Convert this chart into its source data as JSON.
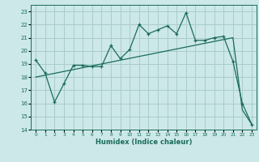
{
  "xlabel": "Humidex (Indice chaleur)",
  "background_color": "#cce8e8",
  "grid_color": "#aacccc",
  "line_color": "#1a6b5a",
  "xlim": [
    -0.5,
    23.5
  ],
  "ylim": [
    14,
    23.5
  ],
  "yticks": [
    14,
    15,
    16,
    17,
    18,
    19,
    20,
    21,
    22,
    23
  ],
  "xticks": [
    0,
    1,
    2,
    3,
    4,
    5,
    6,
    7,
    8,
    9,
    10,
    11,
    12,
    13,
    14,
    15,
    16,
    17,
    18,
    19,
    20,
    21,
    22,
    23
  ],
  "series1_x": [
    0,
    1,
    2,
    3,
    4,
    5,
    6,
    7,
    8,
    9,
    10,
    11,
    12,
    13,
    14,
    15,
    16,
    17,
    18,
    19,
    20,
    21,
    22,
    23
  ],
  "series1_y": [
    19.3,
    18.3,
    16.1,
    17.5,
    18.9,
    18.9,
    18.8,
    18.8,
    20.4,
    19.4,
    20.1,
    22.0,
    21.3,
    21.6,
    21.9,
    21.3,
    22.9,
    20.8,
    20.8,
    21.0,
    21.1,
    19.2,
    16.0,
    14.4
  ],
  "series2_x": [
    0,
    21,
    22,
    23
  ],
  "series2_y": [
    18.0,
    21.0,
    15.5,
    14.4
  ]
}
